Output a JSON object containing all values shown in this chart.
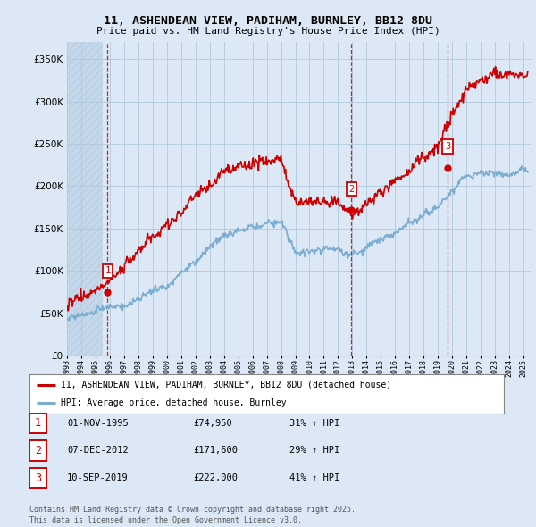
{
  "title_line1": "11, ASHENDEAN VIEW, PADIHAM, BURNLEY, BB12 8DU",
  "title_line2": "Price paid vs. HM Land Registry's House Price Index (HPI)",
  "ylim": [
    0,
    370000
  ],
  "yticks": [
    0,
    50000,
    100000,
    150000,
    200000,
    250000,
    300000,
    350000
  ],
  "ytick_labels": [
    "£0",
    "£50K",
    "£100K",
    "£150K",
    "£200K",
    "£250K",
    "£300K",
    "£350K"
  ],
  "sale_color": "#cc0000",
  "hpi_color": "#7aadcf",
  "vline_color": "#cc0000",
  "sale_dates_num": [
    1995.84,
    2012.93,
    2019.69
  ],
  "sale_prices": [
    74950,
    171600,
    222000
  ],
  "sale_labels": [
    "1",
    "2",
    "3"
  ],
  "legend_sale_label": "11, ASHENDEAN VIEW, PADIHAM, BURNLEY, BB12 8DU (detached house)",
  "legend_hpi_label": "HPI: Average price, detached house, Burnley",
  "table_rows": [
    [
      "1",
      "01-NOV-1995",
      "£74,950",
      "31% ↑ HPI"
    ],
    [
      "2",
      "07-DEC-2012",
      "£171,600",
      "29% ↑ HPI"
    ],
    [
      "3",
      "10-SEP-2019",
      "£222,000",
      "41% ↑ HPI"
    ]
  ],
  "footer_text": "Contains HM Land Registry data © Crown copyright and database right 2025.\nThis data is licensed under the Open Government Licence v3.0.",
  "background_color": "#dce8f5",
  "plot_bg_color": "#dce8f5",
  "hatch_color": "#c5d8eb",
  "grid_color": "#b0c8dc"
}
